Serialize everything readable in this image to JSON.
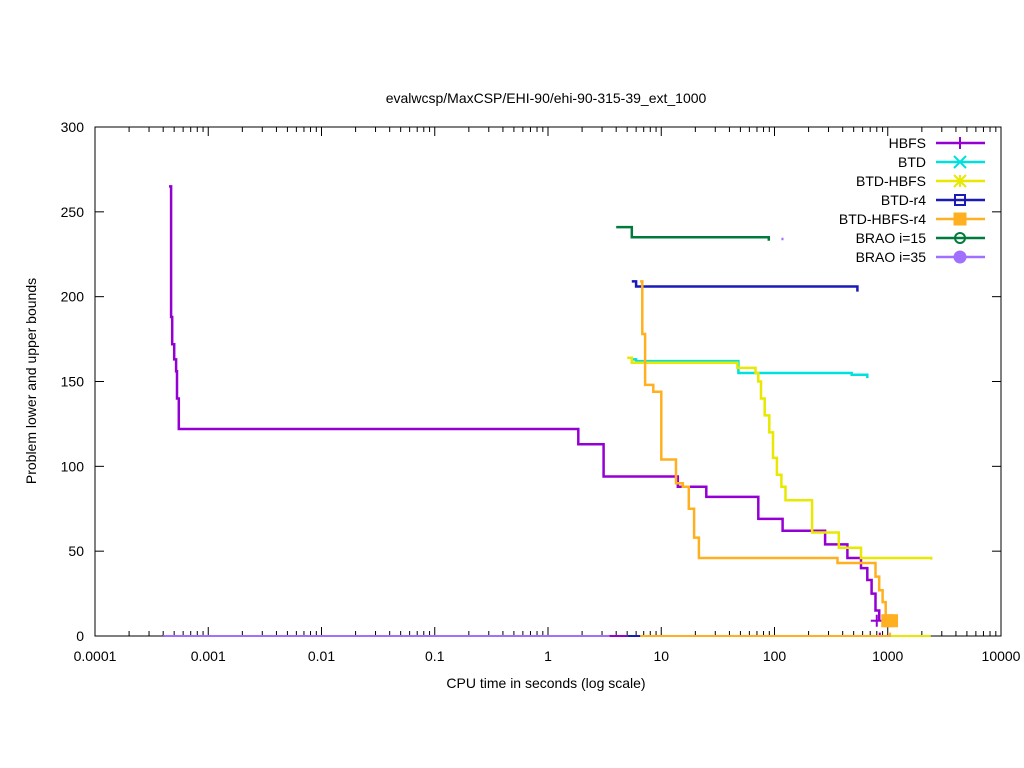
{
  "chart_data": {
    "type": "line",
    "title": "evalwcsp/MaxCSP/EHI-90/ehi-90-315-39_ext_1000",
    "xlabel": "CPU time in seconds (log scale)",
    "ylabel": "Problem lower and upper bounds",
    "xscale": "log",
    "xlim": [
      0.0001,
      10000
    ],
    "ylim": [
      0,
      300
    ],
    "x_ticks": [
      {
        "value": 0.0001,
        "label": "0.0001"
      },
      {
        "value": 0.001,
        "label": "0.001"
      },
      {
        "value": 0.01,
        "label": "0.01"
      },
      {
        "value": 0.1,
        "label": "0.1"
      },
      {
        "value": 1,
        "label": "1"
      },
      {
        "value": 10,
        "label": "10"
      },
      {
        "value": 100,
        "label": "100"
      },
      {
        "value": 1000,
        "label": "1000"
      },
      {
        "value": 10000,
        "label": "10000"
      }
    ],
    "y_ticks": [
      {
        "value": 0,
        "label": "0"
      },
      {
        "value": 50,
        "label": "50"
      },
      {
        "value": 100,
        "label": "100"
      },
      {
        "value": 150,
        "label": "150"
      },
      {
        "value": 200,
        "label": "200"
      },
      {
        "value": 250,
        "label": "250"
      },
      {
        "value": 300,
        "label": "300"
      }
    ],
    "legend_position": "top-right",
    "grid": false,
    "series": [
      {
        "name": "HBFS",
        "color": "#9400d3",
        "marker": "plus",
        "upper": [
          [
            0.00045,
            265
          ],
          [
            0.00047,
            188
          ],
          [
            0.00048,
            172
          ],
          [
            0.0005,
            163
          ],
          [
            0.00052,
            156
          ],
          [
            0.00053,
            140
          ],
          [
            0.00055,
            122
          ],
          [
            1.75,
            122
          ],
          [
            1.85,
            113
          ],
          [
            3.0,
            113
          ],
          [
            3.1,
            94
          ],
          [
            13.0,
            94
          ],
          [
            14.0,
            88
          ],
          [
            24.0,
            88
          ],
          [
            25.0,
            82
          ],
          [
            70.0,
            82
          ],
          [
            72.0,
            69
          ],
          [
            115.0,
            69
          ],
          [
            118.0,
            62
          ],
          [
            270.0,
            62
          ],
          [
            280.0,
            54
          ],
          [
            430.0,
            54
          ],
          [
            440.0,
            46
          ],
          [
            560.0,
            46
          ],
          [
            580.0,
            40
          ],
          [
            640.0,
            40
          ],
          [
            660.0,
            33
          ],
          [
            700.0,
            33
          ],
          [
            720.0,
            25
          ],
          [
            760.0,
            25
          ],
          [
            780.0,
            15
          ],
          [
            820.0,
            15
          ],
          [
            840.0,
            9
          ]
        ],
        "lower": [
          [
            0.0004,
            0
          ],
          [
            820.0,
            0
          ],
          [
            850.0,
            2
          ]
        ],
        "markers": [
          [
            800,
            9
          ]
        ]
      },
      {
        "name": "BTD",
        "color": "#00e0e0",
        "marker": "x",
        "upper": [
          [
            5.5,
            163
          ],
          [
            6.0,
            162
          ],
          [
            47.0,
            162
          ],
          [
            48.0,
            155
          ],
          [
            460.0,
            155
          ],
          [
            480.0,
            154
          ],
          [
            650.0,
            154
          ],
          [
            660.0,
            152
          ]
        ],
        "lower": [
          [
            5.0,
            0
          ],
          [
            700,
            0
          ]
        ],
        "markers": []
      },
      {
        "name": "BTD-HBFS",
        "color": "#e8e800",
        "marker": "star",
        "upper": [
          [
            5.0,
            164
          ],
          [
            5.5,
            161
          ],
          [
            46.0,
            161
          ],
          [
            47.0,
            158
          ],
          [
            66.0,
            158
          ],
          [
            68.0,
            155
          ],
          [
            72.0,
            150
          ],
          [
            76.0,
            140
          ],
          [
            82.0,
            130
          ],
          [
            90.0,
            120
          ],
          [
            97.0,
            105
          ],
          [
            105.0,
            95
          ],
          [
            115.0,
            88
          ],
          [
            125.0,
            80
          ],
          [
            210.0,
            80
          ],
          [
            215.0,
            61
          ],
          [
            360.0,
            61
          ],
          [
            370.0,
            52
          ],
          [
            560.0,
            52
          ],
          [
            580.0,
            46
          ],
          [
            2400.0,
            46
          ],
          [
            2420.0,
            45
          ]
        ],
        "lower": [
          [
            5.0,
            0
          ],
          [
            2400,
            0
          ]
        ],
        "markers": []
      },
      {
        "name": "BTD-r4",
        "color": "#1a1ab8",
        "marker": "square-open",
        "upper": [
          [
            5.5,
            209
          ],
          [
            6.0,
            206
          ],
          [
            530.0,
            206
          ],
          [
            540.0,
            203
          ]
        ],
        "lower": [
          [
            5.0,
            0
          ],
          [
            540,
            0
          ]
        ],
        "markers": []
      },
      {
        "name": "BTD-HBFS-r4",
        "color": "#ffb020",
        "marker": "square-filled",
        "upper": [
          [
            6.5,
            209
          ],
          [
            6.8,
            178
          ],
          [
            7.2,
            148
          ],
          [
            8.0,
            148
          ],
          [
            8.5,
            144
          ],
          [
            9.5,
            144
          ],
          [
            10.0,
            104
          ],
          [
            13.0,
            104
          ],
          [
            13.5,
            90
          ],
          [
            15.0,
            90
          ],
          [
            15.5,
            88
          ],
          [
            17.0,
            88
          ],
          [
            17.5,
            75
          ],
          [
            19.0,
            75
          ],
          [
            19.5,
            58
          ],
          [
            21.0,
            58
          ],
          [
            21.5,
            46
          ],
          [
            350.0,
            46
          ],
          [
            360.0,
            43
          ],
          [
            760.0,
            43
          ],
          [
            780.0,
            35
          ],
          [
            820.0,
            35
          ],
          [
            840.0,
            27
          ],
          [
            880.0,
            27
          ],
          [
            900.0,
            20
          ],
          [
            940.0,
            20
          ],
          [
            960.0,
            10
          ],
          [
            1000.0,
            10
          ],
          [
            1020.0,
            9
          ]
        ],
        "lower": [
          [
            6.5,
            0
          ],
          [
            1000,
            0
          ],
          [
            1050,
            2
          ]
        ],
        "markers": [
          [
            1000,
            9
          ],
          [
            1080,
            9
          ]
        ]
      },
      {
        "name": "BRAO i=15",
        "color": "#007a3d",
        "marker": "circle-open",
        "upper": [
          [
            4.0,
            241
          ],
          [
            5.3,
            241
          ],
          [
            5.5,
            235
          ],
          [
            88.0,
            235
          ],
          [
            89.0,
            233
          ]
        ],
        "lower": [],
        "markers": []
      },
      {
        "name": "BRAO i=35",
        "color": "#a070ff",
        "marker": "circle-filled",
        "upper": [
          [
            115.0,
            234
          ],
          [
            120.0,
            234
          ]
        ],
        "lower": [
          [
            0.0004,
            0
          ],
          [
            3.5,
            0
          ]
        ],
        "markers": []
      }
    ]
  }
}
